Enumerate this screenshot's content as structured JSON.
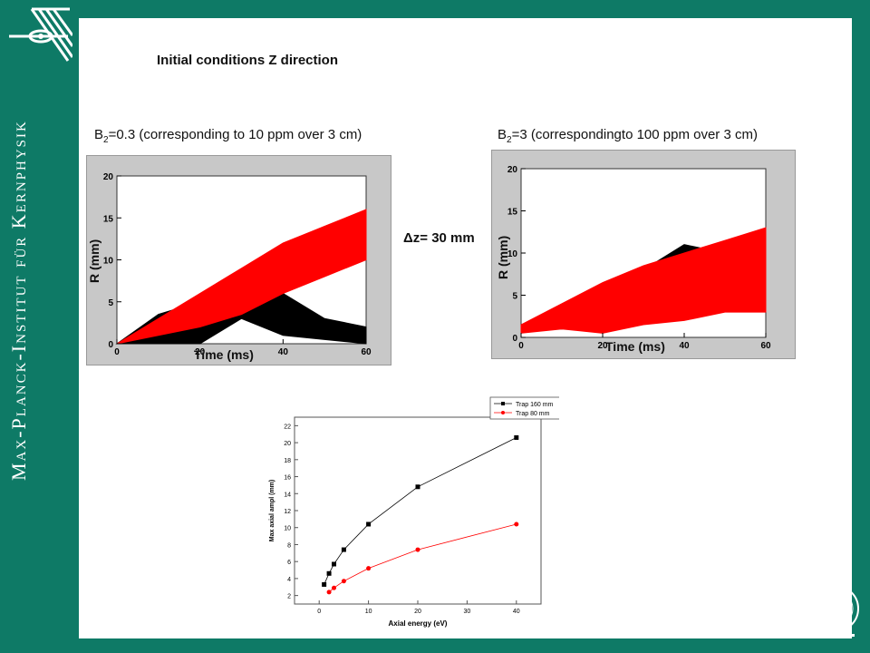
{
  "branding": {
    "side_text": "Max-Planck-Institut für Kernphysik",
    "colors": {
      "frame": "#0e7a66",
      "panel": "#ffffff",
      "red": "#ff0000",
      "black": "#000000"
    }
  },
  "slide": {
    "title": "Initial conditions Z direction",
    "caption_left": {
      "prefix": "B",
      "sub": "2",
      "suffix": "=0.3 (corresponding to 10 ppm over 3 cm)"
    },
    "caption_right": {
      "prefix": "B",
      "sub": "2",
      "suffix": "=3 (correspondingto 100 ppm over 3 cm)"
    },
    "delta_label": "Δz= 30 mm"
  },
  "plots": {
    "left": {
      "ylabel": "R (mm)",
      "xlabel": "Time (ms)",
      "yticks": [
        "0",
        "5",
        "10",
        "15",
        "20"
      ],
      "xticks": [
        "0",
        "20",
        "40",
        "60"
      ]
    },
    "right": {
      "ylabel": "R (mm)",
      "xlabel": "Time (ms)",
      "yticks": [
        "0",
        "5",
        "10",
        "15",
        "20"
      ],
      "xticks": [
        "0",
        "20",
        "40",
        "60"
      ]
    }
  },
  "chart_data": [
    {
      "type": "area",
      "x": [
        0,
        10,
        20,
        30,
        40,
        50,
        60
      ],
      "series": [
        {
          "color": "#000000",
          "upper": [
            0,
            3.5,
            5,
            5,
            6,
            3,
            2
          ],
          "lower": [
            0,
            0,
            0,
            3,
            1,
            0.5,
            0
          ]
        },
        {
          "color": "#ff0000",
          "upper": [
            0,
            3,
            6,
            9,
            12,
            14,
            16
          ],
          "lower": [
            0,
            1,
            2,
            3.5,
            6,
            8,
            10
          ]
        }
      ],
      "xlim": [
        0,
        60
      ],
      "ylim": [
        0,
        20
      ],
      "grid": false
    },
    {
      "type": "area",
      "x": [
        0,
        10,
        20,
        30,
        40,
        50,
        60
      ],
      "series": [
        {
          "color": "#000000",
          "upper": [
            1,
            3,
            5,
            8,
            11,
            10,
            6
          ],
          "lower": [
            1,
            1,
            1.5,
            3,
            3,
            4,
            3
          ]
        },
        {
          "color": "#ff0000",
          "upper": [
            1.5,
            4,
            6.5,
            8.5,
            10,
            11.5,
            13
          ],
          "lower": [
            0.5,
            1,
            0.5,
            1.5,
            2,
            3,
            3
          ]
        }
      ],
      "xlim": [
        0,
        60
      ],
      "ylim": [
        0,
        20
      ],
      "grid": false
    },
    {
      "type": "line",
      "xlabel": "Axial energy (eV)",
      "ylabel": "Max axial ampl (mm)",
      "xlim": [
        -5,
        45
      ],
      "ylim": [
        1,
        23
      ],
      "xticks": [
        0,
        10,
        20,
        30,
        40
      ],
      "yticks": [
        2,
        4,
        6,
        8,
        10,
        12,
        14,
        16,
        18,
        20,
        22
      ],
      "legend": "top-right",
      "series": [
        {
          "name": "Trap 160 mm",
          "color": "#000000",
          "marker": "square",
          "x": [
            1,
            2,
            3,
            5,
            10,
            20,
            40
          ],
          "y": [
            3.3,
            4.6,
            5.7,
            7.4,
            10.4,
            14.8,
            20.6
          ]
        },
        {
          "name": "Trap 80 mm",
          "color": "#ff0000",
          "marker": "circle",
          "x": [
            2,
            3,
            5,
            10,
            20,
            40
          ],
          "y": [
            2.4,
            2.9,
            3.7,
            5.2,
            7.4,
            10.4
          ]
        }
      ]
    }
  ]
}
